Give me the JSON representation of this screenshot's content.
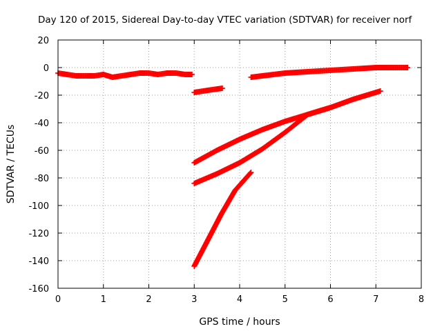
{
  "chart_data": {
    "type": "scatter",
    "title": "Day 120 of 2015, Sidereal Day-to-day VTEC variation (SDTVAR) for receiver norf",
    "xlabel": "GPS time / hours",
    "ylabel": "SDTVAR / TECUs",
    "xlim": [
      0,
      8
    ],
    "ylim": [
      -160,
      20
    ],
    "x_ticks": [
      "0",
      "1",
      "2",
      "3",
      "4",
      "5",
      "6",
      "7",
      "8"
    ],
    "y_ticks": [
      "20",
      "0",
      "-20",
      "-40",
      "-60",
      "-80",
      "-100",
      "-120",
      "-140",
      "-160"
    ],
    "grid": true,
    "marker": "plus",
    "color": "#ff0000",
    "series": [
      {
        "x": [
          0.0,
          0.2,
          0.4,
          0.6,
          0.8,
          1.0,
          1.2,
          1.4,
          1.6,
          1.8,
          2.0,
          2.2,
          2.4,
          2.6,
          2.8,
          2.95
        ],
        "y": [
          -4,
          -5,
          -6,
          -6,
          -6,
          -5,
          -7,
          -6,
          -5,
          -4,
          -4,
          -5,
          -4,
          -4,
          -5,
          -5
        ]
      },
      {
        "x": [
          3.0,
          3.2,
          3.4,
          3.62
        ],
        "y": [
          -18,
          -17,
          -16,
          -15
        ]
      },
      {
        "x": [
          4.25,
          4.5,
          5.0,
          5.5,
          6.0,
          6.5,
          7.0,
          7.5,
          7.7
        ],
        "y": [
          -7,
          -6,
          -4,
          -3,
          -2,
          -1,
          0,
          0,
          0
        ]
      },
      {
        "x": [
          3.0,
          3.5,
          4.0,
          4.5,
          5.0,
          5.5,
          6.0,
          6.5,
          7.1
        ],
        "y": [
          -69,
          -60,
          -52,
          -45,
          -39,
          -34,
          -29,
          -23,
          -17
        ]
      },
      {
        "x": [
          3.0,
          3.5,
          4.0,
          4.5,
          5.0,
          5.5,
          6.0
        ],
        "y": [
          -84,
          -77,
          -69,
          -59,
          -47,
          -34,
          -29
        ]
      },
      {
        "x": [
          3.0,
          3.3,
          3.6,
          3.9,
          4.25
        ],
        "y": [
          -144,
          -125,
          -106,
          -89,
          -76
        ]
      }
    ]
  }
}
